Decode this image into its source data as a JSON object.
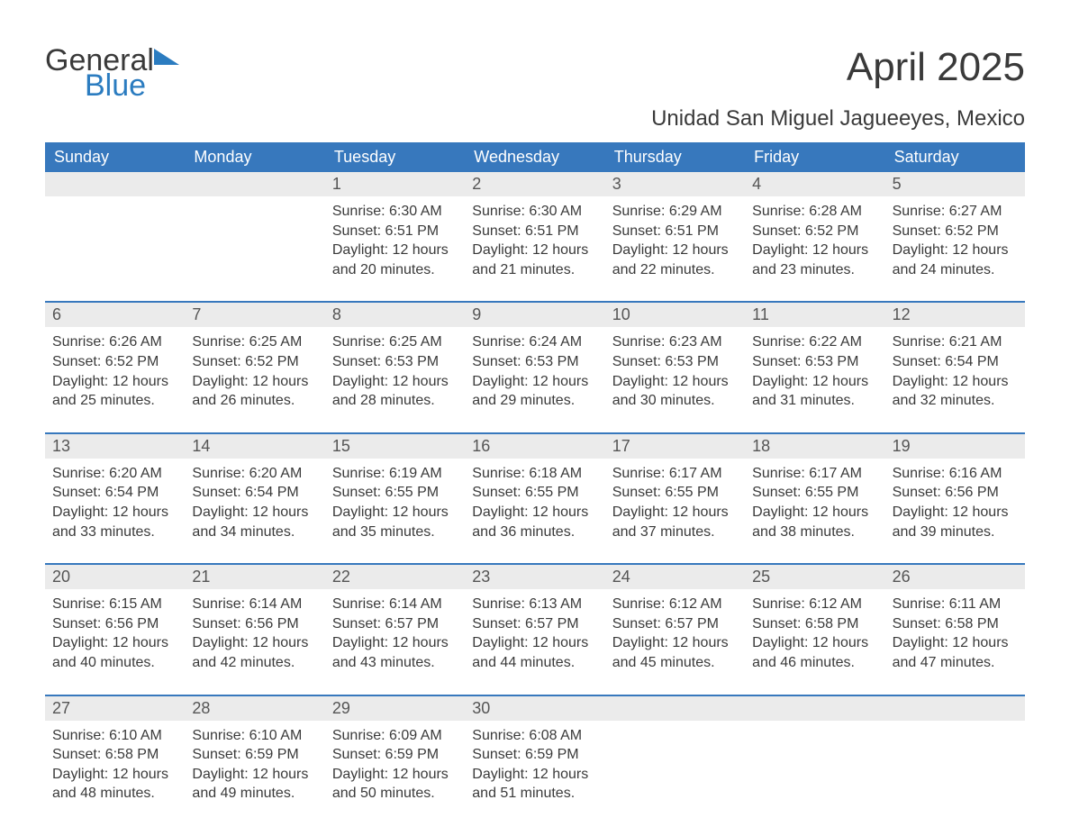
{
  "logo": {
    "text1": "General",
    "text2": "Blue"
  },
  "title": "April 2025",
  "location": "Unidad San Miguel Jagueeyes, Mexico",
  "colors": {
    "header_bg": "#3778bd",
    "header_text": "#ffffff",
    "daynum_bg": "#ebebeb",
    "row_divider": "#3778bd",
    "body_text": "#3a3a3a",
    "logo_blue": "#2b7cc0"
  },
  "weekdays": [
    "Sunday",
    "Monday",
    "Tuesday",
    "Wednesday",
    "Thursday",
    "Friday",
    "Saturday"
  ],
  "weeks": [
    [
      {
        "n": "",
        "lines": []
      },
      {
        "n": "",
        "lines": []
      },
      {
        "n": "1",
        "lines": [
          "Sunrise: 6:30 AM",
          "Sunset: 6:51 PM",
          "Daylight: 12 hours",
          "and 20 minutes."
        ]
      },
      {
        "n": "2",
        "lines": [
          "Sunrise: 6:30 AM",
          "Sunset: 6:51 PM",
          "Daylight: 12 hours",
          "and 21 minutes."
        ]
      },
      {
        "n": "3",
        "lines": [
          "Sunrise: 6:29 AM",
          "Sunset: 6:51 PM",
          "Daylight: 12 hours",
          "and 22 minutes."
        ]
      },
      {
        "n": "4",
        "lines": [
          "Sunrise: 6:28 AM",
          "Sunset: 6:52 PM",
          "Daylight: 12 hours",
          "and 23 minutes."
        ]
      },
      {
        "n": "5",
        "lines": [
          "Sunrise: 6:27 AM",
          "Sunset: 6:52 PM",
          "Daylight: 12 hours",
          "and 24 minutes."
        ]
      }
    ],
    [
      {
        "n": "6",
        "lines": [
          "Sunrise: 6:26 AM",
          "Sunset: 6:52 PM",
          "Daylight: 12 hours",
          "and 25 minutes."
        ]
      },
      {
        "n": "7",
        "lines": [
          "Sunrise: 6:25 AM",
          "Sunset: 6:52 PM",
          "Daylight: 12 hours",
          "and 26 minutes."
        ]
      },
      {
        "n": "8",
        "lines": [
          "Sunrise: 6:25 AM",
          "Sunset: 6:53 PM",
          "Daylight: 12 hours",
          "and 28 minutes."
        ]
      },
      {
        "n": "9",
        "lines": [
          "Sunrise: 6:24 AM",
          "Sunset: 6:53 PM",
          "Daylight: 12 hours",
          "and 29 minutes."
        ]
      },
      {
        "n": "10",
        "lines": [
          "Sunrise: 6:23 AM",
          "Sunset: 6:53 PM",
          "Daylight: 12 hours",
          "and 30 minutes."
        ]
      },
      {
        "n": "11",
        "lines": [
          "Sunrise: 6:22 AM",
          "Sunset: 6:53 PM",
          "Daylight: 12 hours",
          "and 31 minutes."
        ]
      },
      {
        "n": "12",
        "lines": [
          "Sunrise: 6:21 AM",
          "Sunset: 6:54 PM",
          "Daylight: 12 hours",
          "and 32 minutes."
        ]
      }
    ],
    [
      {
        "n": "13",
        "lines": [
          "Sunrise: 6:20 AM",
          "Sunset: 6:54 PM",
          "Daylight: 12 hours",
          "and 33 minutes."
        ]
      },
      {
        "n": "14",
        "lines": [
          "Sunrise: 6:20 AM",
          "Sunset: 6:54 PM",
          "Daylight: 12 hours",
          "and 34 minutes."
        ]
      },
      {
        "n": "15",
        "lines": [
          "Sunrise: 6:19 AM",
          "Sunset: 6:55 PM",
          "Daylight: 12 hours",
          "and 35 minutes."
        ]
      },
      {
        "n": "16",
        "lines": [
          "Sunrise: 6:18 AM",
          "Sunset: 6:55 PM",
          "Daylight: 12 hours",
          "and 36 minutes."
        ]
      },
      {
        "n": "17",
        "lines": [
          "Sunrise: 6:17 AM",
          "Sunset: 6:55 PM",
          "Daylight: 12 hours",
          "and 37 minutes."
        ]
      },
      {
        "n": "18",
        "lines": [
          "Sunrise: 6:17 AM",
          "Sunset: 6:55 PM",
          "Daylight: 12 hours",
          "and 38 minutes."
        ]
      },
      {
        "n": "19",
        "lines": [
          "Sunrise: 6:16 AM",
          "Sunset: 6:56 PM",
          "Daylight: 12 hours",
          "and 39 minutes."
        ]
      }
    ],
    [
      {
        "n": "20",
        "lines": [
          "Sunrise: 6:15 AM",
          "Sunset: 6:56 PM",
          "Daylight: 12 hours",
          "and 40 minutes."
        ]
      },
      {
        "n": "21",
        "lines": [
          "Sunrise: 6:14 AM",
          "Sunset: 6:56 PM",
          "Daylight: 12 hours",
          "and 42 minutes."
        ]
      },
      {
        "n": "22",
        "lines": [
          "Sunrise: 6:14 AM",
          "Sunset: 6:57 PM",
          "Daylight: 12 hours",
          "and 43 minutes."
        ]
      },
      {
        "n": "23",
        "lines": [
          "Sunrise: 6:13 AM",
          "Sunset: 6:57 PM",
          "Daylight: 12 hours",
          "and 44 minutes."
        ]
      },
      {
        "n": "24",
        "lines": [
          "Sunrise: 6:12 AM",
          "Sunset: 6:57 PM",
          "Daylight: 12 hours",
          "and 45 minutes."
        ]
      },
      {
        "n": "25",
        "lines": [
          "Sunrise: 6:12 AM",
          "Sunset: 6:58 PM",
          "Daylight: 12 hours",
          "and 46 minutes."
        ]
      },
      {
        "n": "26",
        "lines": [
          "Sunrise: 6:11 AM",
          "Sunset: 6:58 PM",
          "Daylight: 12 hours",
          "and 47 minutes."
        ]
      }
    ],
    [
      {
        "n": "27",
        "lines": [
          "Sunrise: 6:10 AM",
          "Sunset: 6:58 PM",
          "Daylight: 12 hours",
          "and 48 minutes."
        ]
      },
      {
        "n": "28",
        "lines": [
          "Sunrise: 6:10 AM",
          "Sunset: 6:59 PM",
          "Daylight: 12 hours",
          "and 49 minutes."
        ]
      },
      {
        "n": "29",
        "lines": [
          "Sunrise: 6:09 AM",
          "Sunset: 6:59 PM",
          "Daylight: 12 hours",
          "and 50 minutes."
        ]
      },
      {
        "n": "30",
        "lines": [
          "Sunrise: 6:08 AM",
          "Sunset: 6:59 PM",
          "Daylight: 12 hours",
          "and 51 minutes."
        ]
      },
      {
        "n": "",
        "lines": []
      },
      {
        "n": "",
        "lines": []
      },
      {
        "n": "",
        "lines": []
      }
    ]
  ]
}
